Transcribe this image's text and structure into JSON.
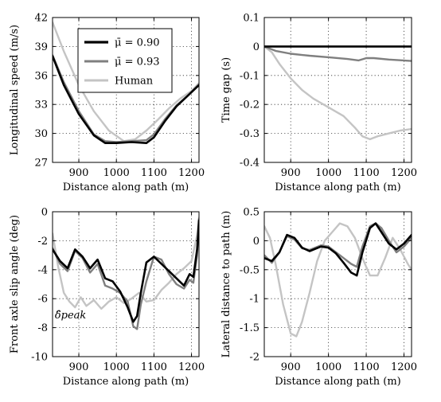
{
  "colors": {
    "series_090": "#000000",
    "series_093": "#7f7f7f",
    "series_human": "#c4c4c4",
    "grid": "#333333"
  },
  "legend": {
    "entries": [
      "μ̄ = 0.90",
      "μ̄ = 0.93",
      "Human"
    ]
  },
  "chart_data": [
    {
      "type": "line",
      "xlabel": "Distance along path (m)",
      "ylabel": "Longitudinal speed (m/s)",
      "xlim": [
        830,
        1220
      ],
      "ylim": [
        27,
        42
      ],
      "xticks": [
        900,
        1000,
        1100,
        1200
      ],
      "yticks": [
        27,
        30,
        33,
        36,
        39,
        42
      ],
      "grid": true,
      "legend_placement": "top-center",
      "series": [
        {
          "name": "μ̄ = 0.90",
          "x": [
            830,
            860,
            900,
            940,
            970,
            1000,
            1040,
            1080,
            1100,
            1130,
            1160,
            1190,
            1220
          ],
          "y": [
            38,
            35,
            32,
            29.8,
            29,
            29,
            29.1,
            29,
            29.6,
            31.3,
            32.8,
            33.9,
            35
          ]
        },
        {
          "name": "μ̄ = 0.93",
          "x": [
            830,
            860,
            900,
            940,
            970,
            1000,
            1040,
            1080,
            1100,
            1130,
            1160,
            1190,
            1220
          ],
          "y": [
            38.1,
            35.3,
            32.3,
            29.9,
            29.2,
            29.1,
            29.2,
            29.3,
            29.9,
            31.5,
            32.9,
            33.9,
            35.1
          ]
        },
        {
          "name": "Human",
          "x": [
            830,
            860,
            900,
            940,
            980,
            1020,
            1050,
            1080,
            1110,
            1140,
            1170,
            1200,
            1220
          ],
          "y": [
            41.5,
            38.5,
            35,
            32.3,
            30.3,
            29.2,
            29.4,
            30.3,
            31.4,
            32.6,
            33.6,
            34.4,
            35.2
          ]
        }
      ]
    },
    {
      "type": "line",
      "xlabel": "Distance along path (m)",
      "ylabel": "Time gap (s)",
      "xlim": [
        830,
        1220
      ],
      "ylim": [
        -0.4,
        0.1
      ],
      "xticks": [
        900,
        1000,
        1100,
        1200
      ],
      "yticks": [
        0.1,
        0,
        -0.1,
        -0.2,
        -0.3,
        -0.4
      ],
      "grid": true,
      "series": [
        {
          "name": "μ̄ = 0.90",
          "x": [
            830,
            1220
          ],
          "y": [
            0,
            0
          ]
        },
        {
          "name": "μ̄ = 0.93",
          "x": [
            830,
            860,
            900,
            950,
            1000,
            1050,
            1080,
            1100,
            1120,
            1160,
            1220
          ],
          "y": [
            0,
            -0.015,
            -0.025,
            -0.032,
            -0.037,
            -0.043,
            -0.048,
            -0.04,
            -0.04,
            -0.045,
            -0.05
          ]
        },
        {
          "name": "Human",
          "x": [
            830,
            850,
            870,
            900,
            930,
            960,
            1000,
            1040,
            1070,
            1090,
            1110,
            1130,
            1160,
            1190,
            1220
          ],
          "y": [
            0,
            -0.02,
            -0.06,
            -0.11,
            -0.15,
            -0.18,
            -0.21,
            -0.24,
            -0.28,
            -0.31,
            -0.32,
            -0.31,
            -0.3,
            -0.29,
            -0.285
          ]
        }
      ]
    },
    {
      "type": "line",
      "xlabel": "Distance along path (m)",
      "ylabel": "Front axle slip angle (deg)",
      "xlim": [
        830,
        1220
      ],
      "ylim": [
        -10,
        0
      ],
      "xticks": [
        900,
        1000,
        1100,
        1200
      ],
      "yticks": [
        0,
        -2,
        -4,
        -6,
        -8,
        -10
      ],
      "grid": true,
      "annotation": "δ̂peak",
      "series": [
        {
          "name": "μ̄ = 0.90",
          "x": [
            830,
            850,
            870,
            890,
            910,
            930,
            950,
            970,
            990,
            1010,
            1030,
            1045,
            1055,
            1065,
            1080,
            1100,
            1120,
            1140,
            1160,
            1180,
            1195,
            1205,
            1215,
            1220
          ],
          "y": [
            -2.6,
            -3.4,
            -3.9,
            -2.6,
            -3.1,
            -3.9,
            -3.3,
            -4.6,
            -4.8,
            -5.5,
            -6.6,
            -7.6,
            -7.2,
            -5.6,
            -3.5,
            -3.1,
            -3.6,
            -4.1,
            -4.6,
            -5.1,
            -4.3,
            -4.5,
            -2.6,
            -0.6
          ]
        },
        {
          "name": "μ̄ = 0.93",
          "x": [
            830,
            850,
            870,
            890,
            910,
            930,
            950,
            970,
            990,
            1010,
            1030,
            1045,
            1055,
            1065,
            1080,
            1100,
            1120,
            1140,
            1160,
            1180,
            1195,
            1205,
            1215,
            1220
          ],
          "y": [
            -2.5,
            -3.6,
            -4.1,
            -2.7,
            -3.2,
            -4.2,
            -3.6,
            -5.1,
            -5.3,
            -5.6,
            -6.2,
            -7.9,
            -8.1,
            -6.4,
            -4.8,
            -3.1,
            -3.3,
            -4.3,
            -5.0,
            -5.3,
            -4.7,
            -4.9,
            -3.0,
            -0.5
          ]
        },
        {
          "name": "Human",
          "x": [
            830,
            845,
            860,
            875,
            890,
            905,
            920,
            940,
            960,
            980,
            1000,
            1020,
            1040,
            1060,
            1080,
            1100,
            1120,
            1140,
            1160,
            1180,
            1200,
            1215,
            1220
          ],
          "y": [
            -1.5,
            -3.8,
            -5.6,
            -6.2,
            -6.6,
            -5.9,
            -6.5,
            -6.1,
            -6.7,
            -6.2,
            -5.9,
            -6.3,
            -6.0,
            -5.6,
            -6.2,
            -6.1,
            -5.4,
            -4.9,
            -4.3,
            -3.9,
            -3.4,
            -1.6,
            -0.4
          ]
        }
      ]
    },
    {
      "type": "line",
      "xlabel": "Distance along path (m)",
      "ylabel": "Lateral distance to path (m)",
      "xlim": [
        830,
        1220
      ],
      "ylim": [
        -2,
        0.5
      ],
      "xticks": [
        900,
        1000,
        1100,
        1200
      ],
      "yticks": [
        0.5,
        0,
        -0.5,
        -1,
        -1.5,
        -2
      ],
      "grid": true,
      "series": [
        {
          "name": "μ̄ = 0.90",
          "x": [
            830,
            850,
            870,
            890,
            910,
            930,
            950,
            980,
            1000,
            1020,
            1040,
            1060,
            1075,
            1090,
            1110,
            1125,
            1140,
            1160,
            1180,
            1200,
            1220
          ],
          "y": [
            -0.3,
            -0.35,
            -0.2,
            0.1,
            0.05,
            -0.12,
            -0.18,
            -0.1,
            -0.12,
            -0.22,
            -0.38,
            -0.55,
            -0.6,
            -0.2,
            0.22,
            0.3,
            0.15,
            -0.05,
            -0.15,
            -0.05,
            0.1
          ]
        },
        {
          "name": "μ̄ = 0.93",
          "x": [
            830,
            850,
            870,
            890,
            910,
            930,
            950,
            980,
            1000,
            1020,
            1040,
            1060,
            1075,
            1090,
            1110,
            1125,
            1140,
            1160,
            1180,
            1200,
            1220
          ],
          "y": [
            -0.25,
            -0.38,
            -0.2,
            0.08,
            0.02,
            -0.13,
            -0.16,
            -0.08,
            -0.1,
            -0.2,
            -0.3,
            -0.4,
            -0.45,
            -0.1,
            0.25,
            0.3,
            0.22,
            0.0,
            -0.2,
            -0.1,
            0.05
          ]
        },
        {
          "name": "Human",
          "x": [
            830,
            845,
            860,
            880,
            900,
            915,
            930,
            950,
            970,
            990,
            1010,
            1030,
            1050,
            1070,
            1090,
            1110,
            1130,
            1150,
            1170,
            1190,
            1210,
            1220
          ],
          "y": [
            0.25,
            0.05,
            -0.4,
            -1.1,
            -1.6,
            -1.65,
            -1.4,
            -0.9,
            -0.35,
            0.0,
            0.15,
            0.3,
            0.25,
            0.05,
            -0.3,
            -0.6,
            -0.6,
            -0.3,
            0.05,
            -0.15,
            -0.4,
            -0.5
          ]
        }
      ]
    }
  ]
}
